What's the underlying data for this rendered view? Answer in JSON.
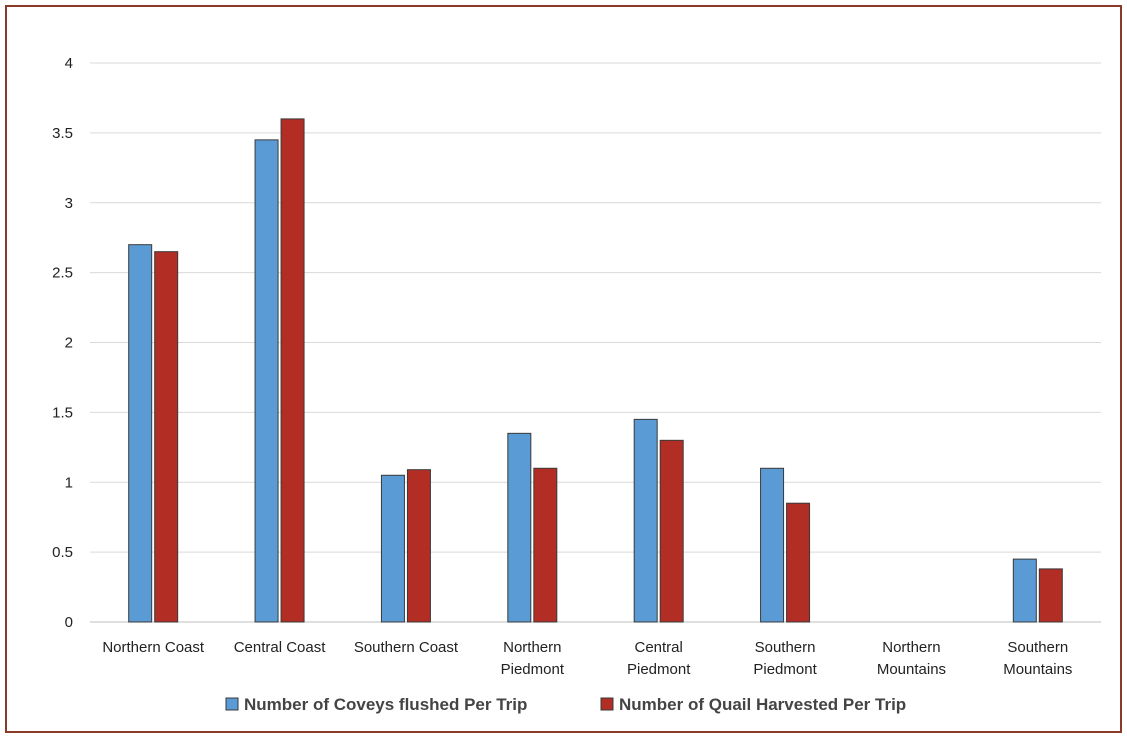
{
  "chart_data": {
    "type": "bar",
    "categories": [
      [
        "Northern Coast"
      ],
      [
        "Central Coast"
      ],
      [
        "Southern Coast"
      ],
      [
        "Northern",
        "Piedmont"
      ],
      [
        "Central",
        "Piedmont"
      ],
      [
        "Southern",
        "Piedmont"
      ],
      [
        "Northern",
        "Mountains"
      ],
      [
        "Southern",
        "Mountains"
      ]
    ],
    "series": [
      {
        "name": "Number of Coveys flushed Per Trip",
        "color": "#5b9bd5",
        "values": [
          2.7,
          3.45,
          1.05,
          1.35,
          1.45,
          1.1,
          0,
          0.45
        ]
      },
      {
        "name": "Number of Quail Harvested Per Trip",
        "color": "#b22e24",
        "values": [
          2.65,
          3.6,
          1.09,
          1.1,
          1.3,
          0.85,
          0,
          0.38
        ]
      }
    ],
    "yticks": [
      "0",
      "0.5",
      "1",
      "1.5",
      "2",
      "2.5",
      "3",
      "3.5",
      "4"
    ],
    "ylim": [
      0,
      4
    ],
    "grid": true,
    "legend_position": "bottom"
  }
}
